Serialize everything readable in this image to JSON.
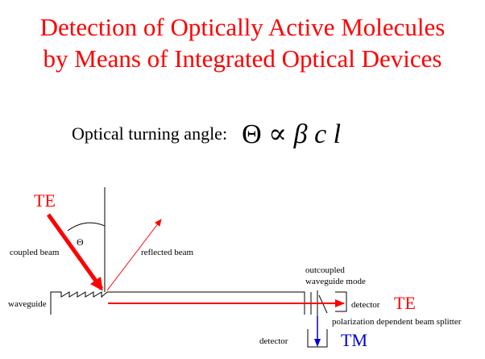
{
  "title": {
    "line1": "Detection of Optically Active Molecules",
    "line2": "by Means of Integrated Optical Devices"
  },
  "formula": {
    "label": "Optical turning angle:",
    "theta": "Θ",
    "propto": "∝",
    "beta": "β",
    "c": "c",
    "l": "l"
  },
  "diagram": {
    "te_input": "TE",
    "theta_symbol": "Θ",
    "coupled_beam": "coupled beam",
    "reflected_beam": "reflected beam",
    "waveguide": "waveguide",
    "outcoupled_line1": "outcoupled",
    "outcoupled_line2": "waveguide mode",
    "detector_right": "detector",
    "te_output": "TE",
    "splitter": "polarization dependent beam splitter",
    "detector_bottom": "detector",
    "tm_output": "TM"
  },
  "colors": {
    "title": "#ff0000",
    "beam": "#ff0000",
    "tm": "#0000cc",
    "lines": "#000000"
  }
}
